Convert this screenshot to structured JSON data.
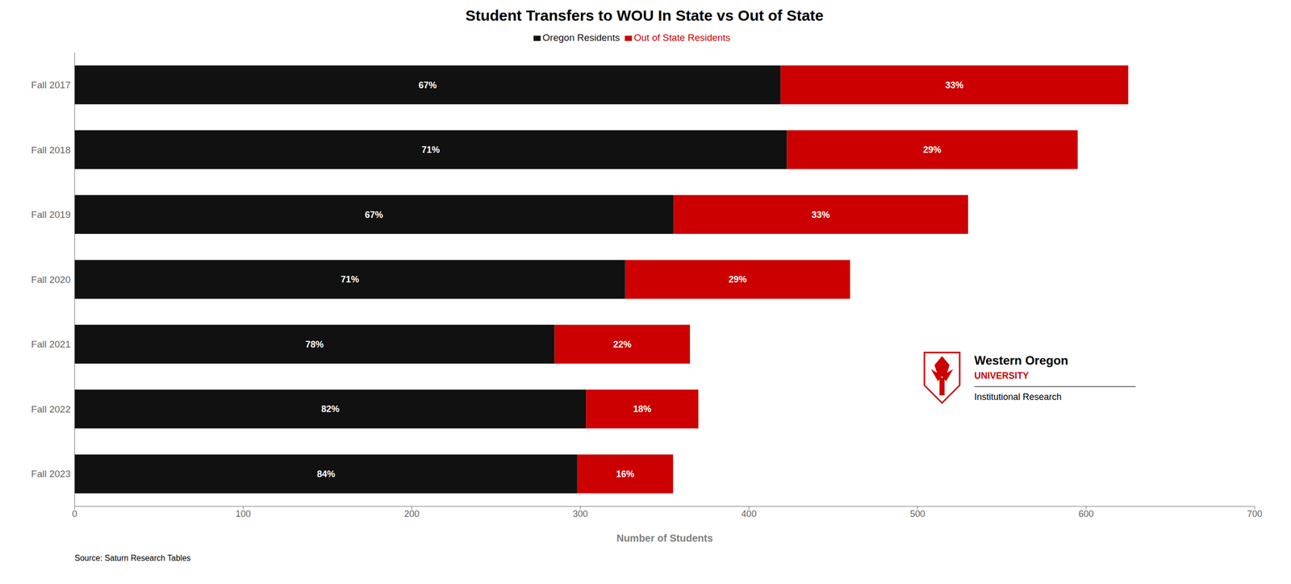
{
  "chart_data": {
    "type": "bar",
    "orientation": "horizontal",
    "stacked": true,
    "title": "Student Transfers to WOU In State vs Out of State",
    "x_label": "Number of Students",
    "categories": [
      "Fall 2017",
      "Fall 2018",
      "Fall 2019",
      "Fall 2020",
      "Fall 2021",
      "Fall 2022",
      "Fall 2023"
    ],
    "series": [
      {
        "name": "Oregon Residents",
        "color": "#111111",
        "values": [
          418.75,
          422.45,
          355.1,
          326.6,
          284.7,
          303.4,
          298.2
        ],
        "pct_labels": [
          "67%",
          "71%",
          "67%",
          "71%",
          "78%",
          "82%",
          "84%"
        ]
      },
      {
        "name": "Out of State Residents",
        "color": "#cc0000",
        "values": [
          206.25,
          172.55,
          174.9,
          133.4,
          80.3,
          66.6,
          56.8
        ],
        "pct_labels": [
          "33%",
          "29%",
          "33%",
          "29%",
          "22%",
          "18%",
          "16%"
        ]
      }
    ],
    "xlim": [
      0,
      700
    ],
    "xticks": [
      0,
      100,
      200,
      300,
      400,
      500,
      600,
      700
    ],
    "grid": false,
    "legend": "top",
    "annotations": [
      "Source: Saturn Research Tables",
      "Western Oregon",
      "UNIVERSITY",
      "Institutional Research"
    ]
  }
}
